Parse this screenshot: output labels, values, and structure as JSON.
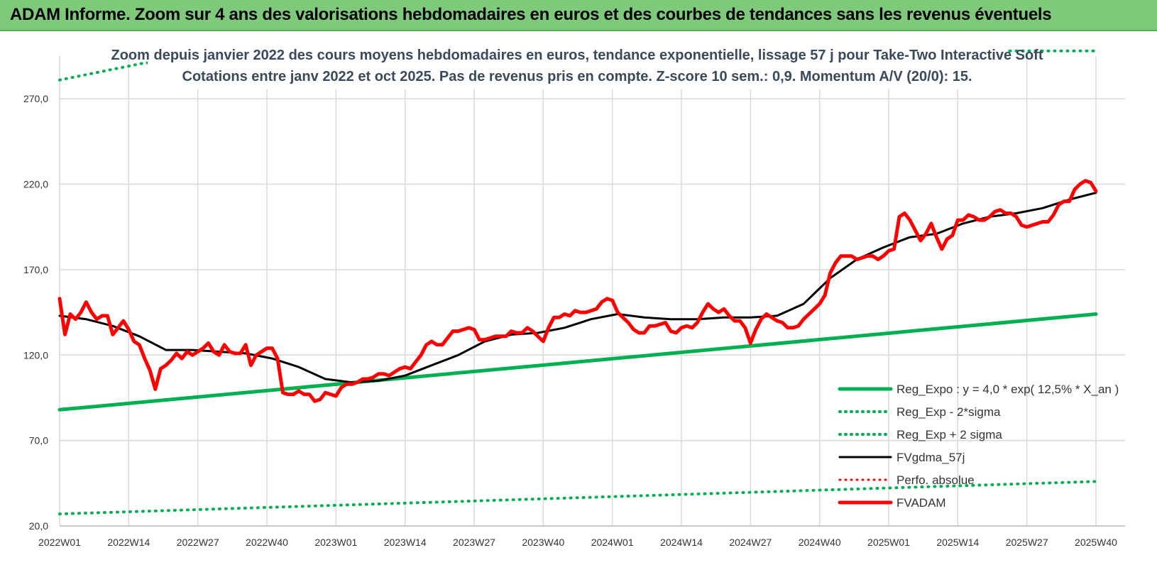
{
  "banner": {
    "title": "ADAM Informe. Zoom sur 4 ans des valorisations hebdomadaires en euros et des courbes de tendances sans les revenus éventuels"
  },
  "chart_data": {
    "type": "line",
    "title": "Zoom depuis janvier 2022 des cours moyens hebdomadaires en euros, tendance exponentielle, lissage 57 j pour Take-Two Interactive Soft",
    "subtitle": "Cotations entre janv 2022 et oct 2025. Pas de revenus pris en compte. Z-score 10 sem.: 0,9. Momentum A/V (20/0): 15.",
    "x_tick_labels": [
      "2022W01",
      "2022W14",
      "2022W27",
      "2022W40",
      "2023W01",
      "2023W14",
      "2023W27",
      "2023W40",
      "2024W01",
      "2024W14",
      "2024W27",
      "2024W40",
      "2025W01",
      "2025W14",
      "2025W27",
      "2025W40"
    ],
    "weeks_per_tick": 13,
    "y_tick_labels": [
      "20,0",
      "70,0",
      "120,0",
      "170,0",
      "220,0",
      "270,0"
    ],
    "ylim": [
      20,
      295
    ],
    "grid": true,
    "legend_position": "bottom-right",
    "series": [
      {
        "name": "Reg_Expo : y = 4,0 * exp( 12,5% * X_an )",
        "color": "#00b050",
        "style": "solid",
        "width": 5,
        "x": [
          0,
          195
        ],
        "values": [
          88,
          144
        ]
      },
      {
        "name": "Reg_Exp - 2*sigma",
        "color": "#00b050",
        "style": "dotted",
        "width": 4,
        "x": [
          0,
          195
        ],
        "values": [
          27,
          46
        ]
      },
      {
        "name": "Reg_Exp + 2 sigma",
        "color": "#00b050",
        "style": "dotted",
        "width": 4,
        "x": [
          0,
          16,
          174,
          195
        ],
        "values": [
          281,
          291,
          298,
          298
        ]
      },
      {
        "name": "FVgdma_57j",
        "color": "#000000",
        "style": "solid",
        "width": 3,
        "x": [
          0,
          5,
          10,
          15,
          20,
          25,
          30,
          35,
          40,
          45,
          50,
          55,
          60,
          65,
          70,
          75,
          80,
          85,
          90,
          95,
          100,
          105,
          110,
          115,
          120,
          125,
          130,
          135,
          140,
          145,
          150,
          155,
          160,
          165,
          170,
          175,
          180,
          185,
          190,
          195
        ],
        "values": [
          143,
          141,
          137,
          131,
          123,
          123,
          122,
          121,
          118,
          113,
          106,
          104,
          105,
          108,
          114,
          120,
          128,
          132,
          133,
          136,
          141,
          144,
          142,
          141,
          141,
          142,
          142,
          143,
          150,
          165,
          176,
          183,
          189,
          191,
          197,
          201,
          203,
          206,
          211,
          215
        ]
      },
      {
        "name": "Perfo. absolue",
        "color": "#ff0000",
        "style": "dotted",
        "width": 3,
        "x": [],
        "values": []
      },
      {
        "name": "FVADAM",
        "color": "#ff0000",
        "style": "solid",
        "width": 5,
        "x": [
          0,
          1,
          2,
          3,
          4,
          5,
          6,
          7,
          8,
          9,
          10,
          11,
          12,
          13,
          14,
          15,
          16,
          17,
          18,
          19,
          20,
          21,
          22,
          23,
          24,
          25,
          26,
          27,
          28,
          29,
          30,
          31,
          32,
          33,
          34,
          35,
          36,
          37,
          38,
          39,
          40,
          41,
          42,
          43,
          44,
          45,
          46,
          47,
          48,
          49,
          50,
          51,
          52,
          53,
          54,
          55,
          56,
          57,
          58,
          59,
          60,
          61,
          62,
          63,
          64,
          65,
          66,
          67,
          68,
          69,
          70,
          71,
          72,
          73,
          74,
          75,
          76,
          77,
          78,
          79,
          80,
          81,
          82,
          83,
          84,
          85,
          86,
          87,
          88,
          89,
          90,
          91,
          92,
          93,
          94,
          95,
          96,
          97,
          98,
          99,
          100,
          101,
          102,
          103,
          104,
          105,
          106,
          107,
          108,
          109,
          110,
          111,
          112,
          113,
          114,
          115,
          116,
          117,
          118,
          119,
          120,
          121,
          122,
          123,
          124,
          125,
          126,
          127,
          128,
          129,
          130,
          131,
          132,
          133,
          134,
          135,
          136,
          137,
          138,
          139,
          140,
          141,
          142,
          143,
          144,
          145,
          146,
          147,
          148,
          149,
          150,
          151,
          152,
          153,
          154,
          155,
          156,
          157,
          158,
          159,
          160,
          161,
          162,
          163,
          164,
          165,
          166,
          167,
          168,
          169,
          170,
          171,
          172,
          173,
          174,
          175,
          176,
          177,
          178,
          179,
          180,
          181,
          182,
          183,
          184,
          185,
          186,
          187,
          188,
          189,
          190,
          191,
          192,
          193,
          194,
          195
        ],
        "values": [
          153,
          132,
          144,
          141,
          145,
          151,
          145,
          141,
          143,
          143,
          132,
          136,
          140,
          135,
          128,
          126,
          118,
          111,
          100,
          112,
          114,
          117,
          121,
          118,
          122,
          120,
          122,
          124,
          127,
          122,
          120,
          126,
          122,
          121,
          121,
          126,
          114,
          120,
          122,
          124,
          124,
          118,
          98,
          97,
          97,
          99,
          97,
          97,
          93,
          94,
          98,
          97,
          96,
          101,
          103,
          103,
          104,
          106,
          106,
          107,
          109,
          109,
          108,
          110,
          112,
          113,
          112,
          116,
          120,
          126,
          128,
          126,
          126,
          130,
          134,
          134,
          135,
          136,
          135,
          129,
          129,
          130,
          131,
          131,
          131,
          134,
          133,
          133,
          136,
          134,
          131,
          128,
          136,
          142,
          142,
          144,
          143,
          146,
          145,
          145,
          146,
          147,
          151,
          153,
          152,
          145,
          142,
          139,
          135,
          133,
          133,
          137,
          137,
          138,
          139,
          134,
          133,
          136,
          137,
          136,
          139,
          145,
          150,
          147,
          145,
          147,
          143,
          140,
          140,
          136,
          127,
          135,
          141,
          144,
          142,
          140,
          139,
          136,
          136,
          137,
          141,
          144,
          147,
          150,
          155,
          168,
          174,
          178,
          178,
          178,
          176,
          177,
          178,
          178,
          176,
          178,
          181,
          182,
          201,
          203,
          199,
          193,
          187,
          191,
          197,
          189,
          182,
          188,
          190,
          199,
          199,
          202,
          201,
          199,
          199,
          201,
          204,
          205,
          203,
          203,
          201,
          196,
          195,
          196,
          197,
          198,
          198,
          202,
          208,
          210,
          210,
          217,
          220,
          222,
          221,
          216
        ]
      }
    ]
  }
}
